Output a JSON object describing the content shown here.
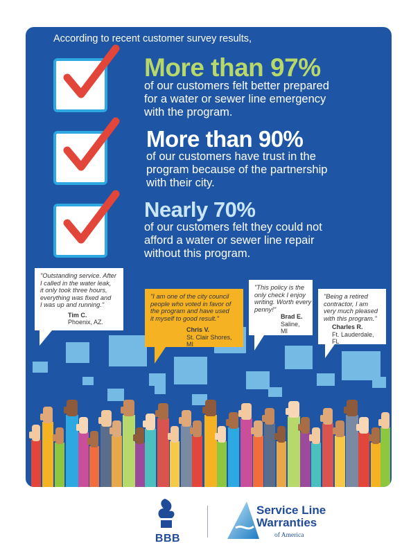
{
  "intro": "According to recent customer survey results,",
  "stats": [
    {
      "headline": "More than 97%",
      "color": "#b7d86a",
      "lines": [
        "of our customers felt better prepared",
        "for a water or sewer line emergency",
        "with the program."
      ]
    },
    {
      "headline": "More than 90%",
      "color": "#ffffff",
      "lines": [
        "of our customers have trust in the",
        "program because of the partnership",
        "with their city."
      ]
    },
    {
      "headline": "Nearly 70%",
      "color": "#c9e6f6",
      "lines": [
        "of our customers felt they could not",
        "afford a water or sewer line repair",
        "without this program."
      ]
    }
  ],
  "testimonials": [
    {
      "quote": [
        "\"Outstanding service. After",
        "I called in the water leak,",
        "it only took three hours,",
        "everything was fixed and",
        "I was up and running.\""
      ],
      "name": "Tim C.",
      "location": "Phoenix, AZ."
    },
    {
      "quote": [
        "\"I am one of the city council",
        "people who voted in favor of",
        "the program and have used",
        "it myself to good result.\""
      ],
      "name": "Chris V.",
      "location": "St. Clair Shores, MI"
    },
    {
      "quote": [
        "\"This policy is the",
        "only check I  enjoy",
        "writing. Worth every",
        "penny!\""
      ],
      "name": "Brad E.",
      "location": "Saline, MI"
    },
    {
      "quote": [
        "\"Being a retired",
        "contractor, I am",
        "very much pleased",
        "with this program.\""
      ],
      "name": "Charles R.",
      "location": "Ft. Lauderdale, FL"
    }
  ],
  "footer": {
    "bbb": "BBB",
    "slw_line1": "Service Line",
    "slw_line2": "Warranties",
    "slw_line3": "of America"
  },
  "colors": {
    "panel": "#1e55a5",
    "accent_green": "#b7d86a",
    "check_red": "#e2453a",
    "checkbox_border": "#2ea8e0",
    "quote_highlight": "#f5b324",
    "brand_blue": "#1f4b99"
  }
}
